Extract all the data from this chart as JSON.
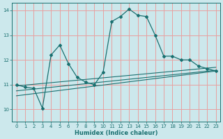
{
  "title": "",
  "xlabel": "Humidex (Indice chaleur)",
  "background_color": "#cce8ec",
  "grid_color": "#e8a0a0",
  "line_color": "#1a7070",
  "spine_color": "#1a7070",
  "xlim": [
    -0.5,
    23.5
  ],
  "ylim": [
    9.5,
    14.3
  ],
  "yticks": [
    10,
    11,
    12,
    13,
    14
  ],
  "xticks": [
    0,
    1,
    2,
    3,
    4,
    5,
    6,
    7,
    8,
    9,
    10,
    11,
    12,
    13,
    14,
    15,
    16,
    17,
    18,
    19,
    20,
    21,
    22,
    23
  ],
  "main_x": [
    0,
    1,
    2,
    3,
    4,
    5,
    6,
    7,
    8,
    9,
    10,
    11,
    12,
    13,
    14,
    15,
    16,
    17,
    18,
    19,
    20,
    21,
    22,
    23
  ],
  "main_y": [
    11.0,
    10.9,
    10.85,
    10.05,
    12.2,
    12.6,
    11.85,
    11.3,
    11.1,
    11.0,
    11.5,
    13.55,
    13.75,
    14.05,
    13.8,
    13.75,
    13.0,
    12.15,
    12.15,
    12.0,
    12.0,
    11.75,
    11.65,
    11.55
  ],
  "line1_x": [
    0,
    23
  ],
  "line1_y": [
    10.95,
    11.7
  ],
  "line2_x": [
    0,
    23
  ],
  "line2_y": [
    10.75,
    11.58
  ],
  "line3_x": [
    0,
    23
  ],
  "line3_y": [
    10.55,
    11.55
  ]
}
